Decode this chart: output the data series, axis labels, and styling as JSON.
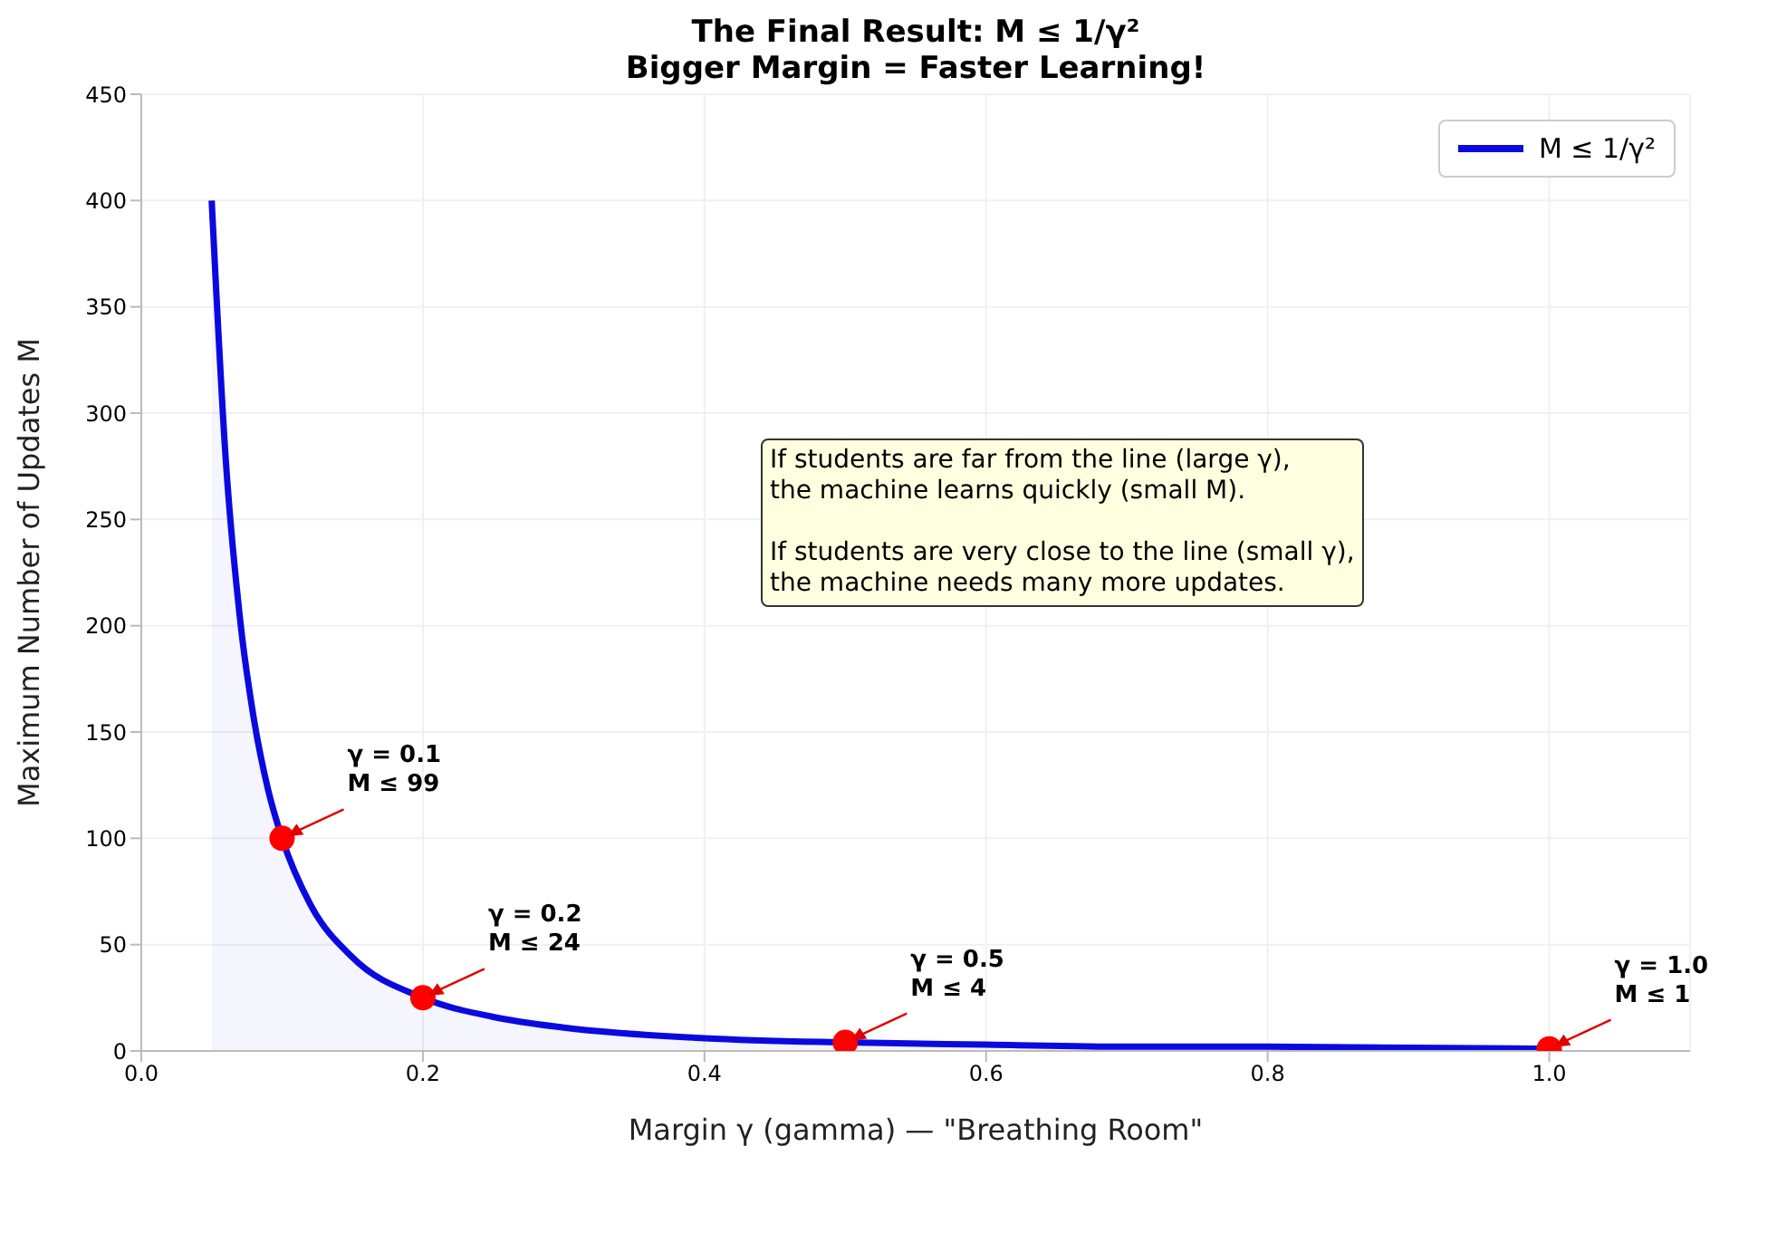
{
  "chart_data": {
    "type": "area",
    "title": "The Final Result: M ≤ 1/γ²\nBigger Margin = Faster Learning!",
    "xlabel": "Margin γ (gamma) — \"Breathing Room\"",
    "ylabel": "Maximum Number of Updates M",
    "series": [
      {
        "name": "M ≤ 1/γ²",
        "color": "#0a0ae0",
        "x": [
          0.05,
          0.06,
          0.07,
          0.08,
          0.09,
          0.1,
          0.12,
          0.15,
          0.2,
          0.25,
          0.3,
          0.4,
          0.5,
          0.6,
          0.7,
          0.8,
          1.0
        ],
        "values": [
          400,
          278,
          204,
          156,
          123,
          100,
          69,
          44,
          25,
          16,
          11,
          6,
          4,
          3,
          2,
          2,
          1
        ]
      },
      {
        "type": "scatter",
        "color": "#ff0000",
        "marker": "circle",
        "x": [
          0.1,
          0.2,
          0.5,
          1.0
        ],
        "values": [
          100,
          25,
          4,
          1
        ]
      }
    ],
    "annotations": [
      {
        "text": "γ = 0.1\nM ≤ 99",
        "x": 0.1,
        "y": 100
      },
      {
        "text": "γ = 0.2\nM ≤ 24",
        "x": 0.2,
        "y": 25
      },
      {
        "text": "γ = 0.5\nM ≤ 4",
        "x": 0.5,
        "y": 4
      },
      {
        "text": "γ = 1.0\nM ≤ 1",
        "x": 1.0,
        "y": 1
      },
      "If students are far from the line (large γ),\nthe machine learns quickly (small M).\n\nIf students are very close to the line (small γ),\nthe machine needs many more updates."
    ],
    "xlim": [
      0,
      1.1
    ],
    "xticks": [
      {
        "value": 0,
        "label": "0.0"
      },
      {
        "value": 0.2,
        "label": "0.2"
      },
      {
        "value": 0.4,
        "label": "0.4"
      },
      {
        "value": 0.6,
        "label": "0.6"
      },
      {
        "value": 0.8,
        "label": "0.8"
      },
      {
        "value": 1,
        "label": "1.0"
      }
    ],
    "ylim": [
      0,
      450
    ],
    "yticks": [
      0,
      50,
      100,
      150,
      200,
      250,
      300,
      350,
      400,
      450
    ],
    "grid": true,
    "legend": "top right",
    "line_style": "solid"
  }
}
